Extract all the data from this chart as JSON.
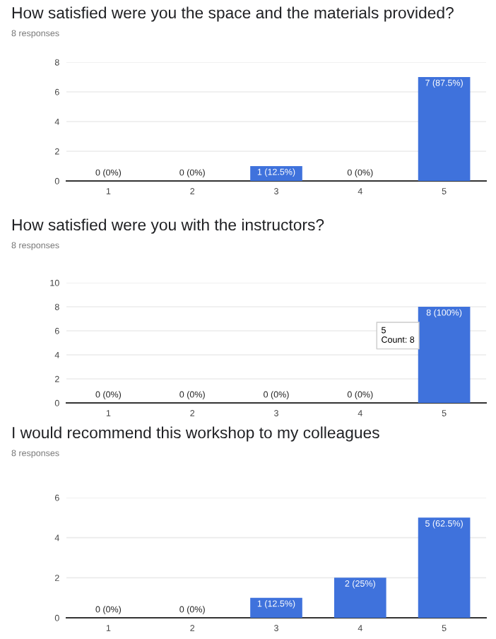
{
  "chart_data": [
    {
      "type": "bar",
      "title": "How satisfied were you the space and the materials provided?",
      "subtitle": "8 responses",
      "categories": [
        "1",
        "2",
        "3",
        "4",
        "5"
      ],
      "values": [
        0,
        0,
        1,
        0,
        7
      ],
      "value_labels": [
        "0 (0%)",
        "0 (0%)",
        "1 (12.5%)",
        "0 (0%)",
        "7 (87.5%)"
      ],
      "color": "#3f72dc",
      "ylim": [
        0,
        8
      ],
      "yticks": [
        0,
        2,
        4,
        6,
        8
      ],
      "grid": "y",
      "legend": false
    },
    {
      "type": "bar",
      "title": "How satisfied were you with the instructors?",
      "subtitle": "8 responses",
      "categories": [
        "1",
        "2",
        "3",
        "4",
        "5"
      ],
      "values": [
        0,
        0,
        0,
        0,
        8
      ],
      "value_labels": [
        "0 (0%)",
        "0 (0%)",
        "0 (0%)",
        "0 (0%)",
        "8 (100%)"
      ],
      "color": "#3f72dc",
      "ylim": [
        0,
        10
      ],
      "yticks": [
        0,
        2,
        4,
        6,
        8,
        10
      ],
      "grid": "y",
      "legend": false,
      "annotations": [
        "5\nCount: 8"
      ]
    },
    {
      "type": "bar",
      "title": "I would recommend this workshop to my colleagues",
      "subtitle": "8 responses",
      "categories": [
        "1",
        "2",
        "3",
        "4",
        "5"
      ],
      "values": [
        0,
        0,
        1,
        2,
        5
      ],
      "value_labels": [
        "0 (0%)",
        "0 (0%)",
        "1 (12.5%)",
        "2 (25%)",
        "5 (62.5%)"
      ],
      "color": "#3f72dc",
      "ylim": [
        0,
        6
      ],
      "yticks": [
        0,
        2,
        4,
        6
      ],
      "grid": "y",
      "legend": false
    }
  ]
}
